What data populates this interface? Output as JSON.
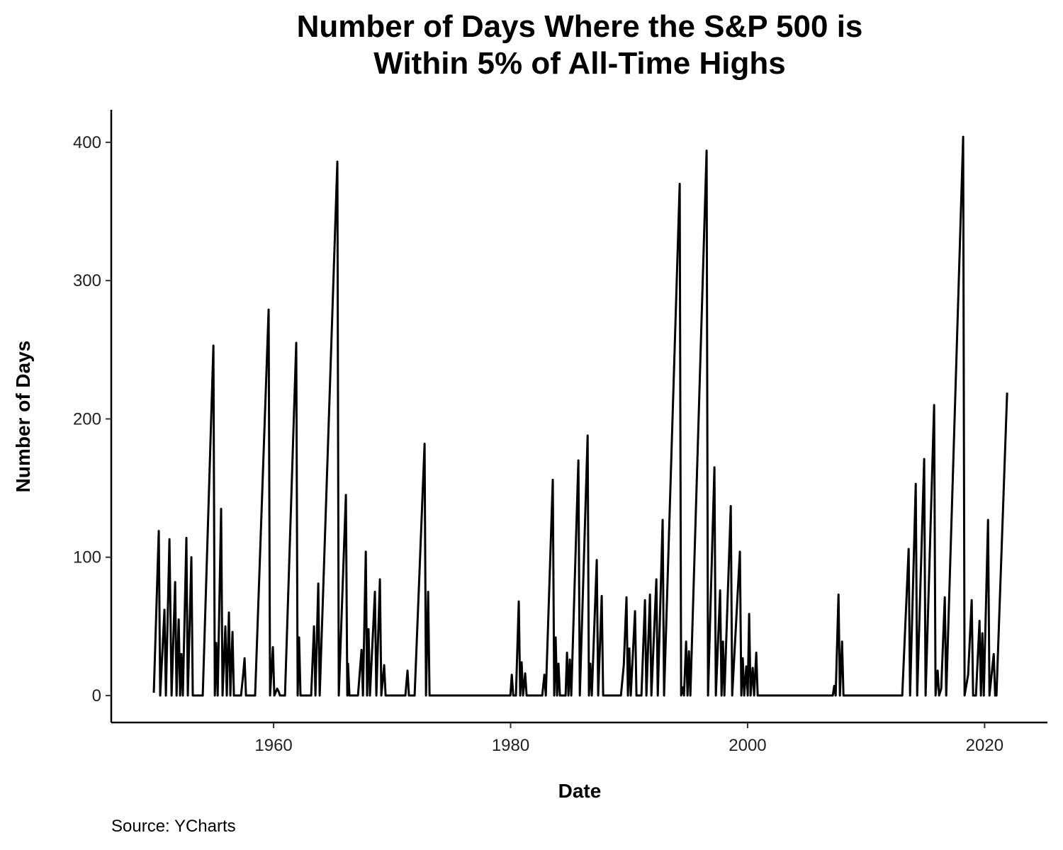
{
  "chart_data": {
    "type": "line",
    "title": "Number of Days Where the S&P 500 is Within 5% of All-Time Highs",
    "x_label": "Date",
    "y_label": "Number of Days",
    "source": "Source: YCharts",
    "color": "#000000",
    "xlim": [
      1946.3,
      2025.3
    ],
    "xticks": [
      1960,
      1980,
      2000,
      2020
    ],
    "ylim": [
      -19.5,
      423.5
    ],
    "yticks": [
      0,
      100,
      200,
      300,
      400
    ],
    "x": [
      1949.89,
      1950.31,
      1950.43,
      1950.79,
      1950.91,
      1951.21,
      1951.39,
      1951.69,
      1951.81,
      1951.99,
      1952.11,
      1952.22,
      1952.34,
      1952.64,
      1952.76,
      1953.06,
      1953.18,
      1954.02,
      1954.92,
      1955.04,
      1955.16,
      1955.28,
      1955.57,
      1955.69,
      1955.93,
      1956.05,
      1956.23,
      1956.35,
      1956.53,
      1956.65,
      1957.25,
      1957.43,
      1957.55,
      1957.67,
      1958.44,
      1959.58,
      1959.7,
      1959.94,
      1960.06,
      1960.3,
      1960.42,
      1960.54,
      1960.96,
      1961.91,
      1962.03,
      1962.15,
      1962.27,
      1963.17,
      1963.41,
      1963.53,
      1963.77,
      1963.89,
      1965.38,
      1965.5,
      1966.1,
      1966.22,
      1966.28,
      1966.4,
      1967.12,
      1967.42,
      1967.54,
      1967.78,
      1967.89,
      1968.01,
      1968.13,
      1968.55,
      1968.67,
      1968.97,
      1969.09,
      1969.33,
      1969.45,
      1971.12,
      1971.3,
      1971.42,
      1971.9,
      1972.74,
      1972.86,
      1973.04,
      1973.16,
      1979.98,
      1980.1,
      1980.22,
      1980.45,
      1980.69,
      1980.81,
      1980.93,
      1981.05,
      1981.23,
      1981.35,
      1982.67,
      1982.85,
      1982.97,
      1983.56,
      1983.68,
      1983.8,
      1983.92,
      1984.04,
      1984.16,
      1984.64,
      1984.76,
      1984.88,
      1985.0,
      1985.12,
      1985.72,
      1985.84,
      1986.5,
      1986.61,
      1986.73,
      1986.85,
      1987.27,
      1987.39,
      1987.69,
      1987.81,
      1989.31,
      1989.55,
      1989.78,
      1989.9,
      1990.02,
      1990.14,
      1990.5,
      1990.62,
      1991.04,
      1991.34,
      1991.46,
      1991.76,
      1991.88,
      1992.3,
      1992.42,
      1992.83,
      1992.95,
      1994.27,
      1994.39,
      1994.51,
      1994.63,
      1994.81,
      1994.93,
      1995.05,
      1995.17,
      1996.54,
      1996.66,
      1997.2,
      1997.32,
      1997.68,
      1997.8,
      1997.92,
      1998.04,
      1998.58,
      1998.7,
      1999.35,
      1999.47,
      1999.59,
      1999.71,
      1999.89,
      2000.01,
      2000.13,
      2000.25,
      2000.43,
      2000.55,
      2000.73,
      2000.85,
      2007.19,
      2007.31,
      2007.43,
      2007.67,
      2007.79,
      2007.97,
      2008.09,
      2013.05,
      2013.59,
      2013.71,
      2014.19,
      2014.31,
      2014.9,
      2015.02,
      2015.74,
      2015.86,
      2016.04,
      2016.16,
      2016.34,
      2016.64,
      2016.76,
      2018.19,
      2018.31,
      2018.61,
      2018.91,
      2019.03,
      2019.27,
      2019.57,
      2019.69,
      2019.81,
      2019.93,
      2020.29,
      2020.41,
      2020.77,
      2020.89,
      2021.0,
      2021.9
    ],
    "values": [
      2,
      119,
      0,
      62,
      0,
      113,
      0,
      82,
      0,
      55,
      0,
      30,
      0,
      114,
      0,
      100,
      0,
      0,
      253,
      0,
      38,
      0,
      135,
      0,
      50,
      0,
      60,
      0,
      46,
      0,
      0,
      15,
      27,
      0,
      0,
      279,
      0,
      35,
      0,
      5,
      3,
      0,
      0,
      255,
      0,
      42,
      0,
      0,
      50,
      0,
      81,
      0,
      386,
      0,
      145,
      0,
      23,
      0,
      0,
      33,
      0,
      104,
      0,
      48,
      0,
      75,
      0,
      84,
      0,
      22,
      0,
      0,
      18,
      0,
      0,
      182,
      0,
      75,
      0,
      0,
      15,
      0,
      0,
      68,
      0,
      24,
      0,
      16,
      0,
      0,
      15,
      0,
      156,
      0,
      42,
      0,
      23,
      0,
      0,
      31,
      0,
      26,
      0,
      170,
      0,
      188,
      0,
      23,
      0,
      98,
      0,
      72,
      0,
      0,
      22,
      71,
      0,
      34,
      0,
      61,
      0,
      0,
      69,
      0,
      73,
      0,
      84,
      0,
      127,
      0,
      370,
      0,
      6,
      0,
      39,
      0,
      32,
      0,
      394,
      0,
      165,
      0,
      76,
      0,
      39,
      0,
      137,
      0,
      104,
      0,
      27,
      0,
      21,
      0,
      59,
      0,
      20,
      0,
      31,
      0,
      0,
      7,
      0,
      73,
      0,
      39,
      0,
      0,
      106,
      0,
      153,
      0,
      171,
      0,
      210,
      0,
      18,
      0,
      5,
      71,
      0,
      404,
      0,
      15,
      69,
      0,
      0,
      54,
      0,
      45,
      0,
      127,
      0,
      30,
      0,
      0,
      219
    ]
  }
}
